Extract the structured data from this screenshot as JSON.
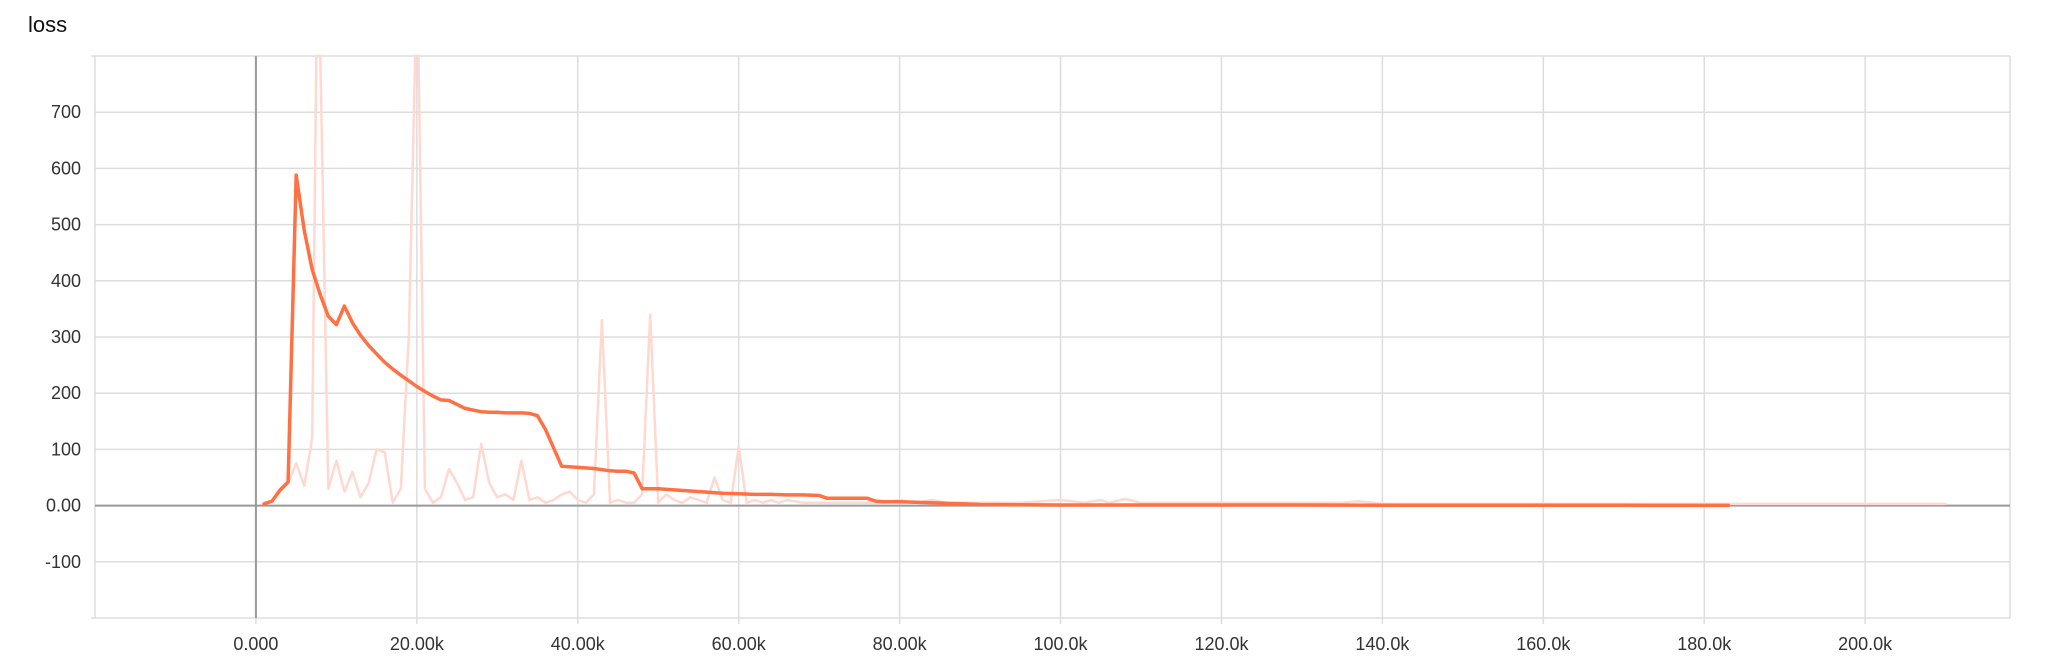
{
  "chart_data": {
    "type": "line",
    "title": "loss",
    "xlabel": "",
    "ylabel": "",
    "xlim": [
      -20000,
      218000
    ],
    "ylim": [
      -200,
      800
    ],
    "x_ticks": [
      {
        "value": 0,
        "label": "0.000"
      },
      {
        "value": 20000,
        "label": "20.00k"
      },
      {
        "value": 40000,
        "label": "40.00k"
      },
      {
        "value": 60000,
        "label": "60.00k"
      },
      {
        "value": 80000,
        "label": "80.00k"
      },
      {
        "value": 100000,
        "label": "100.0k"
      },
      {
        "value": 120000,
        "label": "120.0k"
      },
      {
        "value": 140000,
        "label": "140.0k"
      },
      {
        "value": 160000,
        "label": "160.0k"
      },
      {
        "value": 180000,
        "label": "180.0k"
      },
      {
        "value": 200000,
        "label": "200.0k"
      }
    ],
    "y_ticks": [
      {
        "value": 700,
        "label": "700"
      },
      {
        "value": 600,
        "label": "600"
      },
      {
        "value": 500,
        "label": "500"
      },
      {
        "value": 400,
        "label": "400"
      },
      {
        "value": 300,
        "label": "300"
      },
      {
        "value": 200,
        "label": "200"
      },
      {
        "value": 100,
        "label": "100"
      },
      {
        "value": 0,
        "label": "0.00"
      },
      {
        "value": -100,
        "label": "-100"
      }
    ],
    "grid": true,
    "colors": {
      "smoothed": "#ff7043",
      "raw": "#ffd9cf",
      "grid": "#dddddd",
      "axis": "#999999"
    },
    "series": [
      {
        "role": "raw",
        "x": [
          1000,
          2000,
          3000,
          4000,
          5000,
          6000,
          7000,
          7500,
          8000,
          9000,
          10000,
          11000,
          12000,
          13000,
          14000,
          15000,
          16000,
          17000,
          18000,
          19000,
          19800,
          20200,
          21000,
          22000,
          23000,
          24000,
          25000,
          26000,
          27000,
          28000,
          29000,
          30000,
          31000,
          32000,
          33000,
          34000,
          35000,
          36000,
          37000,
          38000,
          39000,
          40000,
          41000,
          42000,
          43000,
          44000,
          45000,
          46000,
          47000,
          48000,
          49000,
          50000,
          51000,
          52000,
          53000,
          54000,
          55000,
          56000,
          57000,
          58000,
          59000,
          60000,
          61000,
          62000,
          63000,
          64000,
          65000,
          66000,
          68000,
          70000,
          72000,
          74000,
          76000,
          78000,
          80000,
          82000,
          84000,
          86000,
          88000,
          90000,
          95000,
          100000,
          103000,
          105000,
          106000,
          108000,
          110000,
          115000,
          120000,
          125000,
          130000,
          135000,
          137000,
          140000,
          145000,
          150000,
          155000,
          160000,
          165000,
          170000,
          175000,
          180000,
          185000,
          190000,
          195000,
          200000,
          205000,
          210000
        ],
        "y": [
          5,
          8,
          25,
          40,
          75,
          35,
          120,
          800,
          800,
          30,
          80,
          25,
          60,
          15,
          40,
          100,
          95,
          5,
          30,
          300,
          800,
          800,
          30,
          5,
          15,
          65,
          40,
          10,
          15,
          110,
          40,
          15,
          20,
          10,
          80,
          10,
          15,
          5,
          10,
          20,
          25,
          10,
          5,
          20,
          330,
          5,
          10,
          5,
          5,
          20,
          340,
          5,
          20,
          10,
          5,
          15,
          10,
          5,
          50,
          10,
          5,
          105,
          5,
          10,
          5,
          10,
          5,
          10,
          5,
          5,
          5,
          5,
          5,
          5,
          10,
          5,
          10,
          5,
          5,
          5,
          5,
          10,
          5,
          10,
          5,
          12,
          5,
          5,
          5,
          5,
          5,
          5,
          8,
          3,
          3,
          3,
          3,
          3,
          3,
          3,
          3,
          3,
          3,
          3,
          3,
          3,
          3,
          3
        ]
      },
      {
        "role": "smoothed",
        "x": [
          1000,
          2000,
          3000,
          4000,
          5000,
          6000,
          7000,
          8000,
          9000,
          10000,
          11000,
          12000,
          13000,
          14000,
          15000,
          16000,
          17000,
          18000,
          19000,
          20000,
          21000,
          22000,
          23000,
          24000,
          25000,
          26000,
          27000,
          28000,
          29000,
          30000,
          31000,
          32000,
          33000,
          34000,
          35000,
          36000,
          38000,
          40000,
          42000,
          44000,
          45000,
          46000,
          47000,
          48000,
          50000,
          52000,
          54000,
          56000,
          58000,
          60000,
          62000,
          64000,
          66000,
          68000,
          70000,
          71000,
          72000,
          74000,
          76000,
          77000,
          78000,
          80000,
          82000,
          84000,
          86000,
          88000,
          90000,
          95000,
          100000,
          110000,
          120000,
          130000,
          140000,
          150000,
          160000,
          170000,
          180000,
          183000
        ],
        "y": [
          3,
          8,
          28,
          42,
          588,
          490,
          420,
          375,
          337,
          322,
          355,
          325,
          303,
          285,
          270,
          255,
          243,
          232,
          222,
          212,
          203,
          195,
          188,
          187,
          180,
          173,
          170,
          167,
          166,
          166,
          165,
          165,
          165,
          164,
          160,
          135,
          70,
          68,
          66,
          62,
          61,
          61,
          58,
          30,
          30,
          28,
          26,
          24,
          22,
          21,
          20,
          20,
          19,
          19,
          18,
          13,
          13,
          13,
          13,
          8,
          7,
          7,
          6,
          5,
          4,
          3,
          2,
          1.5,
          1,
          1,
          1,
          1,
          0.5,
          0.5,
          0.5,
          0.5,
          0.3,
          0.3
        ]
      }
    ]
  }
}
